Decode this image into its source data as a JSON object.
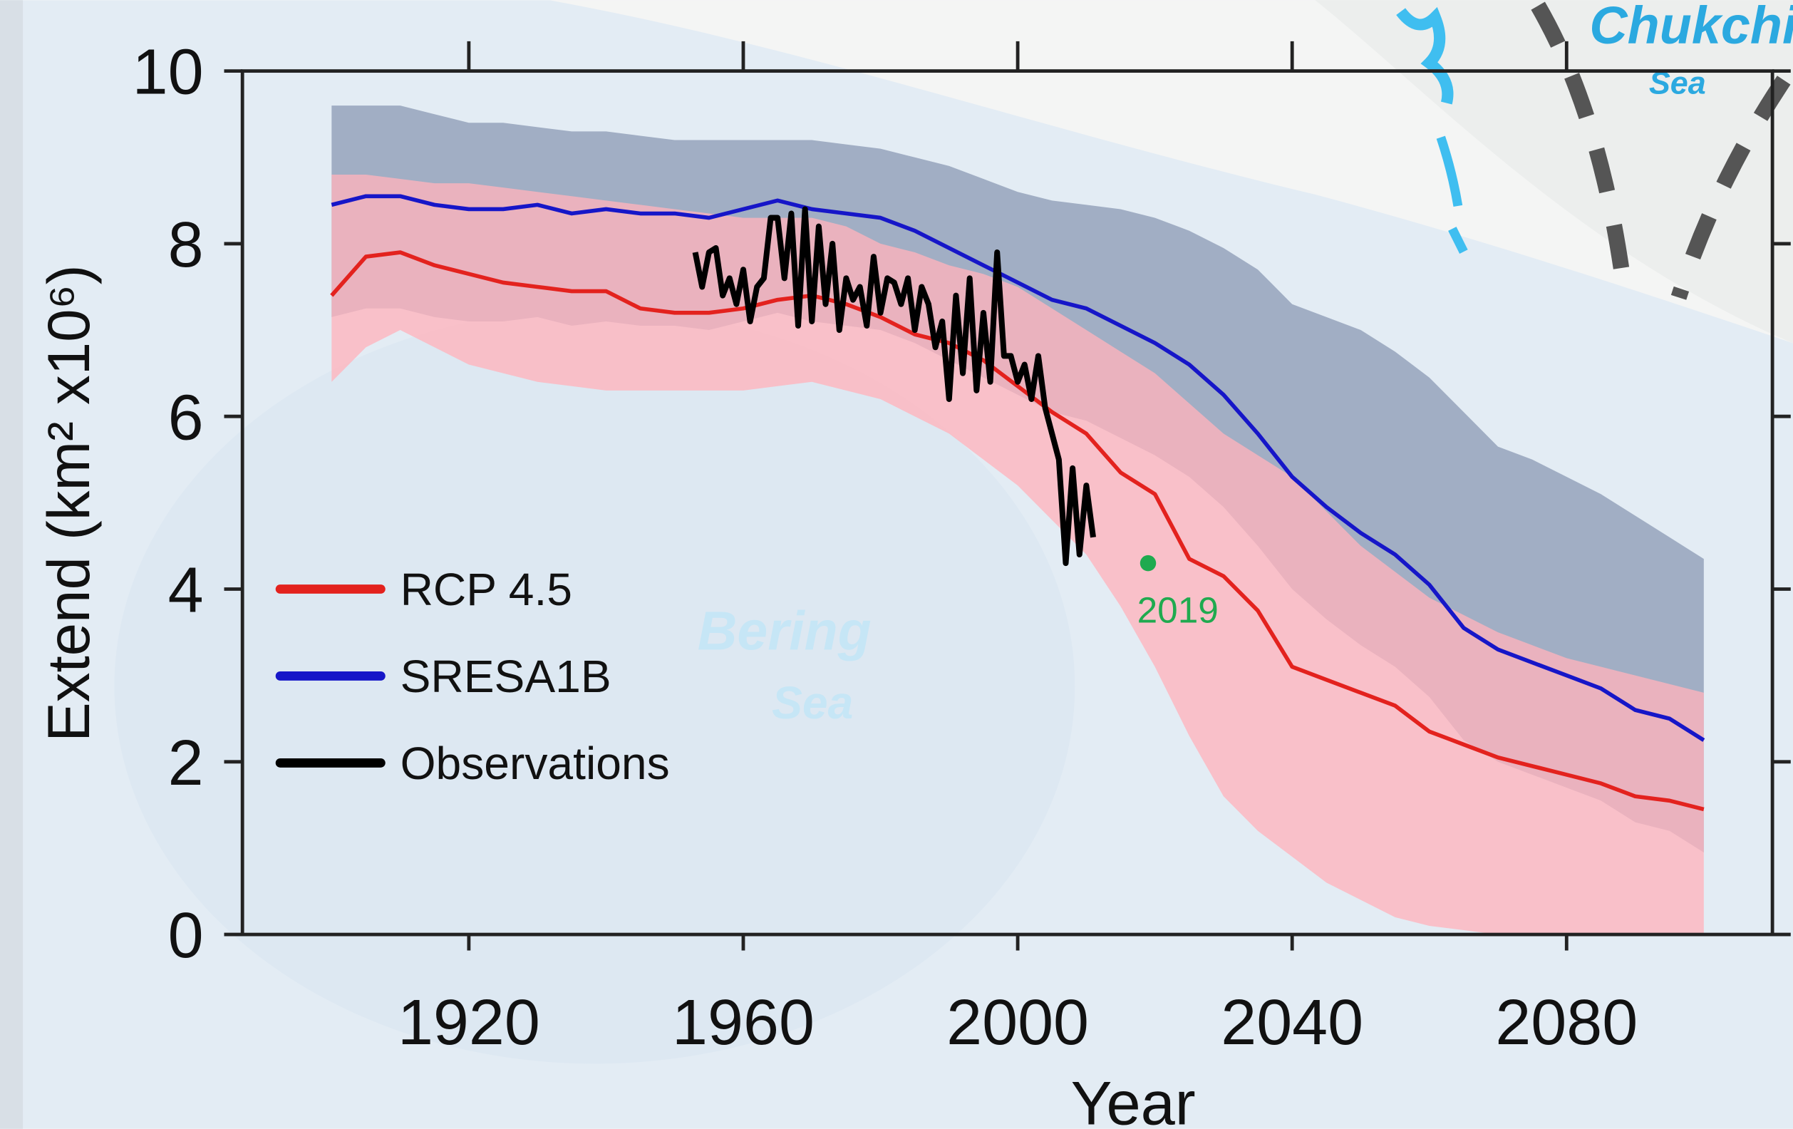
{
  "chart_data": {
    "type": "line",
    "xlabel": "Year",
    "ylabel": "Extend (km² x10⁶)",
    "xlim": [
      1887,
      2110
    ],
    "ylim": [
      0,
      10
    ],
    "xticks": [
      1920,
      1960,
      2000,
      2040,
      2080
    ],
    "yticks": [
      0,
      2,
      4,
      6,
      8,
      10
    ],
    "legend": "left",
    "x": [
      1900,
      1905,
      1910,
      1915,
      1920,
      1925,
      1930,
      1935,
      1940,
      1945,
      1950,
      1955,
      1960,
      1965,
      1970,
      1975,
      1980,
      1985,
      1990,
      1995,
      2000,
      2005,
      2010,
      2015,
      2020,
      2025,
      2030,
      2035,
      2040,
      2045,
      2050,
      2055,
      2060,
      2065,
      2070,
      2075,
      2080,
      2085,
      2090,
      2095,
      2100
    ],
    "series": [
      {
        "name": "RCP 4.5",
        "color": "#e3221e",
        "band_color": "#ffb3bd",
        "values": [
          7.4,
          7.85,
          7.9,
          7.75,
          7.65,
          7.55,
          7.5,
          7.45,
          7.45,
          7.25,
          7.2,
          7.2,
          7.25,
          7.35,
          7.4,
          7.3,
          7.15,
          6.95,
          6.85,
          6.65,
          6.35,
          6.05,
          5.8,
          5.35,
          5.1,
          4.35,
          4.15,
          3.75,
          3.1,
          2.95,
          2.8,
          2.65,
          2.35,
          2.2,
          2.05,
          1.95,
          1.85,
          1.75,
          1.6,
          1.55,
          1.45
        ],
        "upper": [
          8.8,
          8.8,
          8.75,
          8.7,
          8.7,
          8.65,
          8.6,
          8.55,
          8.5,
          8.45,
          8.4,
          8.35,
          8.3,
          8.3,
          8.3,
          8.2,
          8.0,
          7.9,
          7.75,
          7.65,
          7.5,
          7.25,
          7.0,
          6.75,
          6.5,
          6.15,
          5.8,
          5.55,
          5.3,
          4.9,
          4.5,
          4.2,
          3.9,
          3.7,
          3.5,
          3.35,
          3.2,
          3.1,
          3.0,
          2.9,
          2.8
        ],
        "lower": [
          6.4,
          6.8,
          7.0,
          6.8,
          6.6,
          6.5,
          6.4,
          6.35,
          6.3,
          6.3,
          6.3,
          6.3,
          6.3,
          6.35,
          6.4,
          6.3,
          6.2,
          6.0,
          5.8,
          5.5,
          5.2,
          4.8,
          4.4,
          3.8,
          3.1,
          2.3,
          1.6,
          1.2,
          0.9,
          0.6,
          0.4,
          0.2,
          0.1,
          0.05,
          0,
          0,
          0,
          0,
          0,
          0,
          0
        ]
      },
      {
        "name": "SRESA1B",
        "color": "#1616c8",
        "band_color": "#8e9cb6",
        "values": [
          8.45,
          8.55,
          8.55,
          8.45,
          8.4,
          8.4,
          8.45,
          8.35,
          8.4,
          8.35,
          8.35,
          8.3,
          8.4,
          8.5,
          8.4,
          8.35,
          8.3,
          8.15,
          7.95,
          7.75,
          7.55,
          7.35,
          7.25,
          7.05,
          6.85,
          6.6,
          6.25,
          5.8,
          5.3,
          4.95,
          4.65,
          4.4,
          4.05,
          3.55,
          3.3,
          3.15,
          3.0,
          2.85,
          2.6,
          2.5,
          2.25
        ],
        "upper": [
          9.6,
          9.6,
          9.6,
          9.5,
          9.4,
          9.4,
          9.35,
          9.3,
          9.3,
          9.25,
          9.2,
          9.2,
          9.2,
          9.2,
          9.2,
          9.15,
          9.1,
          9.0,
          8.9,
          8.75,
          8.6,
          8.5,
          8.45,
          8.4,
          8.3,
          8.15,
          7.95,
          7.7,
          7.3,
          7.15,
          7.0,
          6.75,
          6.45,
          6.05,
          5.65,
          5.5,
          5.3,
          5.1,
          4.85,
          4.6,
          4.35
        ],
        "lower": [
          7.15,
          7.25,
          7.25,
          7.15,
          7.1,
          7.1,
          7.15,
          7.05,
          7.1,
          7.05,
          7.05,
          7.0,
          7.1,
          7.2,
          7.1,
          7.05,
          7.0,
          6.85,
          6.65,
          6.45,
          6.25,
          6.05,
          5.95,
          5.75,
          5.55,
          5.3,
          4.95,
          4.5,
          4.0,
          3.65,
          3.35,
          3.1,
          2.75,
          2.25,
          2.0,
          1.85,
          1.7,
          1.55,
          1.3,
          1.2,
          0.95
        ]
      },
      {
        "name": "Observations",
        "color": "#000000",
        "x": [
          1953,
          1954,
          1955,
          1956,
          1957,
          1958,
          1959,
          1960,
          1961,
          1962,
          1963,
          1964,
          1965,
          1966,
          1967,
          1968,
          1969,
          1970,
          1971,
          1972,
          1973,
          1974,
          1975,
          1976,
          1977,
          1978,
          1979,
          1980,
          1981,
          1982,
          1983,
          1984,
          1985,
          1986,
          1987,
          1988,
          1989,
          1990,
          1991,
          1992,
          1993,
          1994,
          1995,
          1996,
          1997,
          1998,
          1999,
          2000,
          2001,
          2002,
          2003,
          2004,
          2005,
          2006,
          2007,
          2008,
          2009,
          2010,
          2011
        ],
        "values": [
          7.9,
          7.5,
          7.9,
          7.95,
          7.4,
          7.6,
          7.3,
          7.7,
          7.1,
          7.5,
          7.6,
          8.3,
          8.3,
          7.6,
          8.35,
          7.05,
          8.4,
          7.1,
          8.2,
          7.3,
          8.0,
          7.0,
          7.6,
          7.35,
          7.5,
          7.05,
          7.85,
          7.2,
          7.6,
          7.55,
          7.3,
          7.6,
          7.0,
          7.5,
          7.3,
          6.8,
          7.1,
          6.2,
          7.4,
          6.5,
          7.6,
          6.3,
          7.2,
          6.4,
          7.9,
          6.7,
          6.7,
          6.4,
          6.6,
          6.2,
          6.7,
          6.1,
          5.8,
          5.5,
          4.3,
          5.4,
          4.4,
          5.2,
          4.6
        ]
      }
    ],
    "annotations": [
      {
        "text": "2019",
        "x": 2019,
        "y": 4.3,
        "color": "#1faa4f"
      }
    ],
    "map_labels": [
      "Chukchi",
      "Sea",
      "Bering",
      "Sea"
    ]
  }
}
